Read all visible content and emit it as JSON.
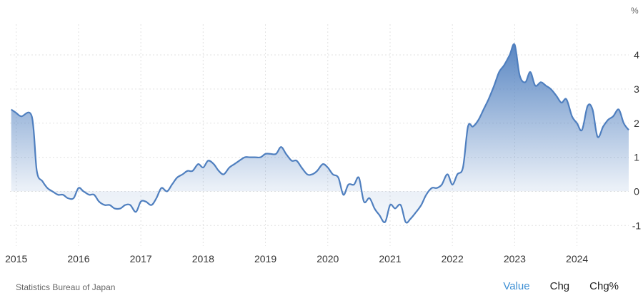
{
  "chart_data": {
    "type": "area",
    "y_unit_label": "%",
    "x_tick_labels": [
      "2015",
      "2016",
      "2017",
      "2018",
      "2019",
      "2020",
      "2021",
      "2022",
      "2023",
      "2024"
    ],
    "y_tick_labels": [
      "-1",
      "0",
      "1",
      "2",
      "3",
      "4"
    ],
    "ylim": [
      -1.6,
      4.9
    ],
    "xlim": [
      2014.9,
      2024.83
    ],
    "grid": true,
    "series": [
      {
        "color": "#4f7fbf",
        "points": [
          [
            2014.92,
            2.4
          ],
          [
            2015.0,
            2.3
          ],
          [
            2015.08,
            2.2
          ],
          [
            2015.25,
            2.2
          ],
          [
            2015.33,
            0.6
          ],
          [
            2015.42,
            0.3
          ],
          [
            2015.5,
            0.1
          ],
          [
            2015.58,
            0.0
          ],
          [
            2015.67,
            -0.1
          ],
          [
            2015.75,
            -0.1
          ],
          [
            2015.83,
            -0.2
          ],
          [
            2015.92,
            -0.2
          ],
          [
            2016.0,
            0.1
          ],
          [
            2016.08,
            0.0
          ],
          [
            2016.17,
            -0.1
          ],
          [
            2016.25,
            -0.1
          ],
          [
            2016.33,
            -0.3
          ],
          [
            2016.42,
            -0.4
          ],
          [
            2016.5,
            -0.4
          ],
          [
            2016.58,
            -0.5
          ],
          [
            2016.67,
            -0.5
          ],
          [
            2016.75,
            -0.4
          ],
          [
            2016.83,
            -0.4
          ],
          [
            2016.92,
            -0.6
          ],
          [
            2017.0,
            -0.3
          ],
          [
            2017.08,
            -0.3
          ],
          [
            2017.17,
            -0.4
          ],
          [
            2017.25,
            -0.2
          ],
          [
            2017.33,
            0.1
          ],
          [
            2017.42,
            0.0
          ],
          [
            2017.5,
            0.2
          ],
          [
            2017.58,
            0.4
          ],
          [
            2017.67,
            0.5
          ],
          [
            2017.75,
            0.6
          ],
          [
            2017.83,
            0.6
          ],
          [
            2017.92,
            0.8
          ],
          [
            2018.0,
            0.7
          ],
          [
            2018.08,
            0.9
          ],
          [
            2018.17,
            0.8
          ],
          [
            2018.25,
            0.6
          ],
          [
            2018.33,
            0.5
          ],
          [
            2018.42,
            0.7
          ],
          [
            2018.5,
            0.8
          ],
          [
            2018.58,
            0.9
          ],
          [
            2018.67,
            1.0
          ],
          [
            2018.75,
            1.0
          ],
          [
            2018.83,
            1.0
          ],
          [
            2018.92,
            1.0
          ],
          [
            2019.0,
            1.1
          ],
          [
            2019.08,
            1.1
          ],
          [
            2019.17,
            1.1
          ],
          [
            2019.25,
            1.3
          ],
          [
            2019.33,
            1.1
          ],
          [
            2019.42,
            0.9
          ],
          [
            2019.5,
            0.9
          ],
          [
            2019.58,
            0.7
          ],
          [
            2019.67,
            0.5
          ],
          [
            2019.75,
            0.5
          ],
          [
            2019.83,
            0.6
          ],
          [
            2019.92,
            0.8
          ],
          [
            2020.0,
            0.7
          ],
          [
            2020.08,
            0.5
          ],
          [
            2020.17,
            0.4
          ],
          [
            2020.25,
            -0.1
          ],
          [
            2020.33,
            0.2
          ],
          [
            2020.42,
            0.2
          ],
          [
            2020.5,
            0.4
          ],
          [
            2020.58,
            -0.3
          ],
          [
            2020.67,
            -0.2
          ],
          [
            2020.75,
            -0.5
          ],
          [
            2020.83,
            -0.7
          ],
          [
            2020.92,
            -0.9
          ],
          [
            2021.0,
            -0.4
          ],
          [
            2021.08,
            -0.5
          ],
          [
            2021.17,
            -0.4
          ],
          [
            2021.25,
            -0.9
          ],
          [
            2021.33,
            -0.8
          ],
          [
            2021.42,
            -0.6
          ],
          [
            2021.5,
            -0.4
          ],
          [
            2021.58,
            -0.1
          ],
          [
            2021.67,
            0.1
          ],
          [
            2021.75,
            0.1
          ],
          [
            2021.83,
            0.2
          ],
          [
            2021.92,
            0.5
          ],
          [
            2022.0,
            0.2
          ],
          [
            2022.08,
            0.5
          ],
          [
            2022.17,
            0.7
          ],
          [
            2022.25,
            1.9
          ],
          [
            2022.33,
            1.9
          ],
          [
            2022.42,
            2.1
          ],
          [
            2022.5,
            2.4
          ],
          [
            2022.58,
            2.7
          ],
          [
            2022.67,
            3.1
          ],
          [
            2022.75,
            3.5
          ],
          [
            2022.83,
            3.7
          ],
          [
            2022.92,
            4.0
          ],
          [
            2023.0,
            4.3
          ],
          [
            2023.08,
            3.4
          ],
          [
            2023.17,
            3.2
          ],
          [
            2023.25,
            3.5
          ],
          [
            2023.33,
            3.1
          ],
          [
            2023.42,
            3.2
          ],
          [
            2023.5,
            3.1
          ],
          [
            2023.58,
            3.0
          ],
          [
            2023.67,
            2.8
          ],
          [
            2023.75,
            2.6
          ],
          [
            2023.83,
            2.7
          ],
          [
            2023.92,
            2.2
          ],
          [
            2024.0,
            2.0
          ],
          [
            2024.08,
            1.8
          ],
          [
            2024.17,
            2.5
          ],
          [
            2024.25,
            2.4
          ],
          [
            2024.33,
            1.6
          ],
          [
            2024.42,
            1.9
          ],
          [
            2024.5,
            2.1
          ],
          [
            2024.58,
            2.2
          ],
          [
            2024.67,
            2.4
          ],
          [
            2024.75,
            2.0
          ],
          [
            2024.83,
            1.8
          ]
        ]
      }
    ]
  },
  "source": "Statistics Bureau of Japan",
  "toggles": [
    {
      "label": "Value",
      "active": true
    },
    {
      "label": "Chg",
      "active": false
    },
    {
      "label": "Chg%",
      "active": false
    }
  ]
}
